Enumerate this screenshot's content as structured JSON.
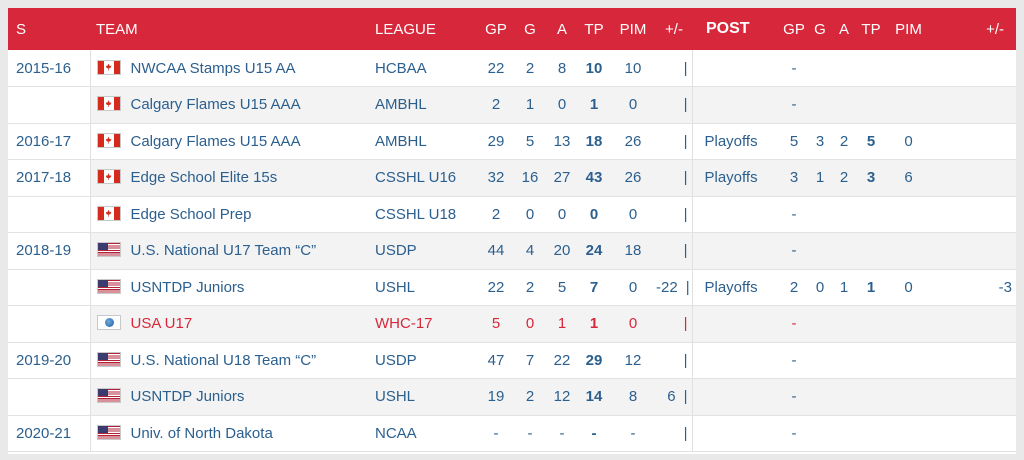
{
  "headers": {
    "s": "S",
    "team": "TEAM",
    "league": "LEAGUE",
    "gp": "GP",
    "g": "G",
    "a": "A",
    "tp": "TP",
    "pim": "PIM",
    "pm": "+/-",
    "post": "POST",
    "pgp": "GP",
    "pg": "G",
    "pa": "A",
    "ptp": "TP",
    "ppim": "PIM",
    "ppm": "+/-"
  },
  "rows": [
    {
      "season": "2015-16",
      "flag": "ca",
      "team": "NWCAA Stamps U15 AA",
      "league": "HCBAA",
      "gp": "22",
      "g": "2",
      "a": "8",
      "tp": "10",
      "pim": "10",
      "pm": "",
      "sep": "|",
      "post": "",
      "pgp": "-",
      "pg": "",
      "pa": "",
      "ptp": "",
      "ppim": "",
      "ppm": ""
    },
    {
      "season": "",
      "flag": "ca",
      "team": "Calgary Flames U15 AAA",
      "league": "AMBHL",
      "gp": "2",
      "g": "1",
      "a": "0",
      "tp": "1",
      "pim": "0",
      "pm": "",
      "sep": "|",
      "post": "",
      "pgp": "-",
      "pg": "",
      "pa": "",
      "ptp": "",
      "ppim": "",
      "ppm": ""
    },
    {
      "season": "2016-17",
      "flag": "ca",
      "team": "Calgary Flames U15 AAA",
      "league": "AMBHL",
      "gp": "29",
      "g": "5",
      "a": "13",
      "tp": "18",
      "pim": "26",
      "pm": "",
      "sep": "|",
      "post": "Playoffs",
      "pgp": "5",
      "pg": "3",
      "pa": "2",
      "ptp": "5",
      "ppim": "0",
      "ppm": ""
    },
    {
      "season": "2017-18",
      "flag": "ca",
      "team": "Edge School Elite 15s",
      "league": "CSSHL U16",
      "gp": "32",
      "g": "16",
      "a": "27",
      "tp": "43",
      "pim": "26",
      "pm": "",
      "sep": "|",
      "post": "Playoffs",
      "pgp": "3",
      "pg": "1",
      "pa": "2",
      "ptp": "3",
      "ppim": "6",
      "ppm": ""
    },
    {
      "season": "",
      "flag": "ca",
      "team": "Edge School Prep",
      "league": "CSSHL U18",
      "gp": "2",
      "g": "0",
      "a": "0",
      "tp": "0",
      "pim": "0",
      "pm": "",
      "sep": "|",
      "post": "",
      "pgp": "-",
      "pg": "",
      "pa": "",
      "ptp": "",
      "ppim": "",
      "ppm": ""
    },
    {
      "season": "2018-19",
      "flag": "us",
      "team": "U.S. National U17 Team “C”",
      "league": "USDP",
      "gp": "44",
      "g": "4",
      "a": "20",
      "tp": "24",
      "pim": "18",
      "pm": "",
      "sep": "|",
      "post": "",
      "pgp": "-",
      "pg": "",
      "pa": "",
      "ptp": "",
      "ppim": "",
      "ppm": ""
    },
    {
      "season": "",
      "flag": "us",
      "team": "USNTDP Juniors",
      "league": "USHL",
      "gp": "22",
      "g": "2",
      "a": "5",
      "tp": "7",
      "pim": "0",
      "pm": "-22",
      "sep": "|",
      "post": "Playoffs",
      "pgp": "2",
      "pg": "0",
      "pa": "1",
      "ptp": "1",
      "ppim": "0",
      "ppm": "-3"
    },
    {
      "season": "",
      "flag": "world",
      "team": "USA U17",
      "league": "WHC-17",
      "gp": "5",
      "g": "0",
      "a": "1",
      "tp": "1",
      "pim": "0",
      "pm": "",
      "sep": "|",
      "post": "",
      "pgp": "-",
      "pg": "",
      "pa": "",
      "ptp": "",
      "ppim": "",
      "ppm": "",
      "red": true
    },
    {
      "season": "2019-20",
      "flag": "us",
      "team": "U.S. National U18 Team “C”",
      "league": "USDP",
      "gp": "47",
      "g": "7",
      "a": "22",
      "tp": "29",
      "pim": "12",
      "pm": "",
      "sep": "|",
      "post": "",
      "pgp": "-",
      "pg": "",
      "pa": "",
      "ptp": "",
      "ppim": "",
      "ppm": ""
    },
    {
      "season": "",
      "flag": "us",
      "team": "USNTDP Juniors",
      "league": "USHL",
      "gp": "19",
      "g": "2",
      "a": "12",
      "tp": "14",
      "pim": "8",
      "pm": "6",
      "sep": "|",
      "post": "",
      "pgp": "-",
      "pg": "",
      "pa": "",
      "ptp": "",
      "ppim": "",
      "ppm": ""
    },
    {
      "season": "2020-21",
      "flag": "us",
      "team": "Univ. of North Dakota",
      "league": "NCAA",
      "gp": "-",
      "g": "-",
      "a": "-",
      "tp": "-",
      "pim": "-",
      "pm": "",
      "sep": "|",
      "post": "",
      "pgp": "-",
      "pg": "",
      "pa": "",
      "ptp": "",
      "ppim": "",
      "ppm": ""
    }
  ],
  "colors": {
    "header_bg": "#d7283b",
    "link": "#2b5f8e",
    "red_row": "#d7283b",
    "alt_row": "#f3f3f3"
  },
  "flag_icons": {
    "ca": "canada-flag-icon",
    "us": "usa-flag-icon",
    "world": "world-flag-icon"
  }
}
